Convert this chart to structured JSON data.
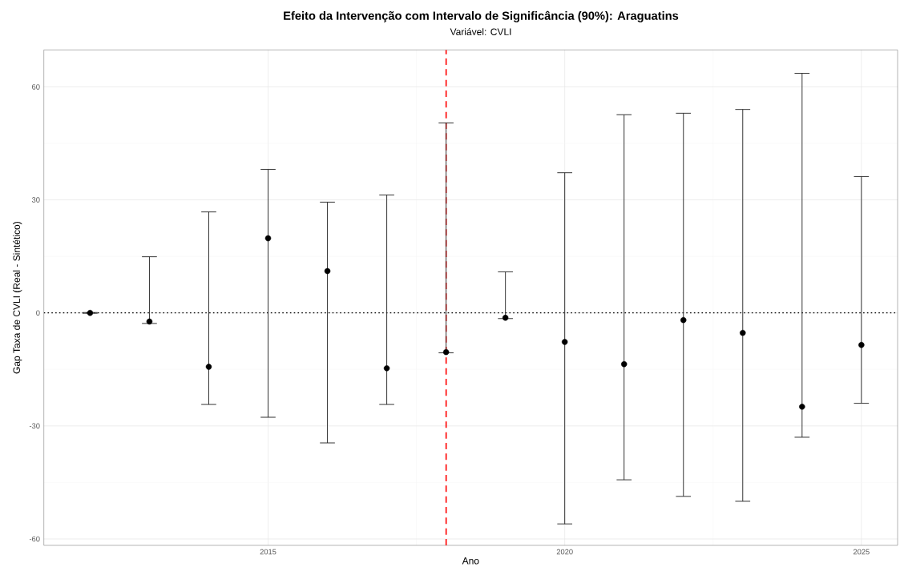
{
  "chart_data": {
    "type": "scatter",
    "title": "Efeito da Intervenção com Intervalo de Significância (90%): Araguatins",
    "subtitle": "Variável: CVLI",
    "xlabel": "Ano",
    "ylabel": "Gap Taxa de CVLI (Real - Sintético)",
    "x": [
      2012,
      2013,
      2014,
      2015,
      2016,
      2017,
      2018,
      2019,
      2020,
      2021,
      2022,
      2023,
      2024,
      2025
    ],
    "values": [
      0,
      -2.3,
      -14.3,
      19.8,
      11.1,
      -14.7,
      -10.4,
      -1.3,
      -7.7,
      -13.6,
      -1.9,
      -5.3,
      -24.9,
      -8.5
    ],
    "errors": [
      [
        -0.1,
        0.1
      ],
      [
        -2.8,
        14.9
      ],
      [
        -24.3,
        26.8
      ],
      [
        -27.7,
        38.1
      ],
      [
        -34.5,
        29.4
      ],
      [
        -24.3,
        31.3
      ],
      [
        -10.6,
        50.4
      ],
      [
        -1.5,
        10.9
      ],
      [
        -56,
        37.2
      ],
      [
        -44.3,
        52.6
      ],
      [
        -48.7,
        53
      ],
      [
        -50,
        54
      ],
      [
        -33,
        63.6
      ],
      [
        -24,
        36.2
      ]
    ],
    "color": "#000000",
    "marker": "circle",
    "xlim": [
      2011.22,
      2025.61
    ],
    "ylim": [
      -61.7,
      69.8
    ],
    "xticks": [
      2015,
      2020,
      2025
    ],
    "yticks": [
      -60,
      -30,
      0,
      30,
      60
    ],
    "grid": true,
    "ref_lines": [
      {
        "axis": "y",
        "value": 0,
        "color": "#000000",
        "line_style": "dotted"
      },
      {
        "axis": "x",
        "value": 2018,
        "color": "#ff0000",
        "line_style": "dashed"
      }
    ]
  }
}
